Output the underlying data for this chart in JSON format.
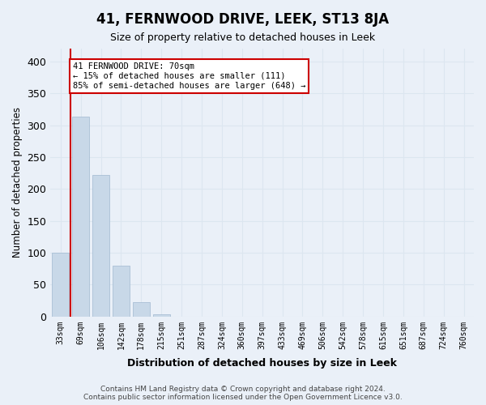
{
  "title": "41, FERNWOOD DRIVE, LEEK, ST13 8JA",
  "subtitle": "Size of property relative to detached houses in Leek",
  "xlabel": "Distribution of detached houses by size in Leek",
  "ylabel": "Number of detached properties",
  "categories": [
    "33sqm",
    "69sqm",
    "106sqm",
    "142sqm",
    "178sqm",
    "215sqm",
    "251sqm",
    "287sqm",
    "324sqm",
    "360sqm",
    "397sqm",
    "433sqm",
    "469sqm",
    "506sqm",
    "542sqm",
    "578sqm",
    "615sqm",
    "651sqm",
    "687sqm",
    "724sqm",
    "760sqm"
  ],
  "values": [
    100,
    313,
    222,
    80,
    22,
    3,
    0,
    0,
    0,
    0,
    0,
    0,
    0,
    0,
    0,
    0,
    0,
    0,
    0,
    0,
    0
  ],
  "bar_color": "#c8d8e8",
  "bar_edge_color": "#a0b8d0",
  "grid_color": "#dce6f0",
  "background_color": "#eaf0f8",
  "property_line_x": 0.5,
  "annotation_text": "41 FERNWOOD DRIVE: 70sqm\n← 15% of detached houses are smaller (111)\n85% of semi-detached houses are larger (648) →",
  "annotation_box_color": "#ffffff",
  "annotation_box_edge": "#cc0000",
  "property_line_color": "#cc0000",
  "ylim": [
    0,
    420
  ],
  "yticks": [
    0,
    50,
    100,
    150,
    200,
    250,
    300,
    350,
    400
  ],
  "footnote": "Contains HM Land Registry data © Crown copyright and database right 2024.\nContains public sector information licensed under the Open Government Licence v3.0."
}
